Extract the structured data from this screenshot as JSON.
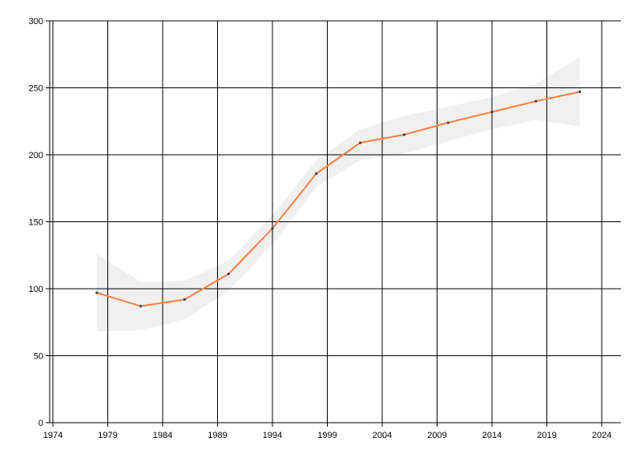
{
  "chart_data": {
    "type": "line",
    "title": "",
    "xlabel": "",
    "ylabel": "",
    "xlim": [
      1974,
      2026
    ],
    "ylim": [
      0,
      300
    ],
    "x_ticks": [
      1974,
      1979,
      1984,
      1989,
      1994,
      1999,
      2004,
      2009,
      2014,
      2019,
      2024
    ],
    "y_ticks": [
      0,
      50,
      100,
      150,
      200,
      250,
      300
    ],
    "grid": true,
    "legend": "none",
    "series": [
      {
        "color": "#ff7f3f",
        "marker_color": "#404040",
        "x": [
          1978,
          1982,
          1986,
          1990,
          1994,
          1998,
          2002,
          2006,
          2010,
          2014,
          2018,
          2022
        ],
        "values": [
          97,
          87,
          92,
          111,
          145,
          186,
          209,
          215,
          224,
          232,
          240,
          247
        ]
      }
    ],
    "band": {
      "color": "#f0f0f0",
      "x": [
        1978,
        1982,
        1986,
        1990,
        1994,
        1998,
        2002,
        2006,
        2010,
        2014,
        2018,
        2022
      ],
      "upper": [
        126,
        105,
        106,
        121,
        155,
        196,
        219,
        229,
        236,
        243,
        253,
        273
      ],
      "lower": [
        68,
        69,
        77,
        98,
        133,
        176,
        196,
        201,
        210,
        219,
        226,
        221
      ]
    }
  }
}
